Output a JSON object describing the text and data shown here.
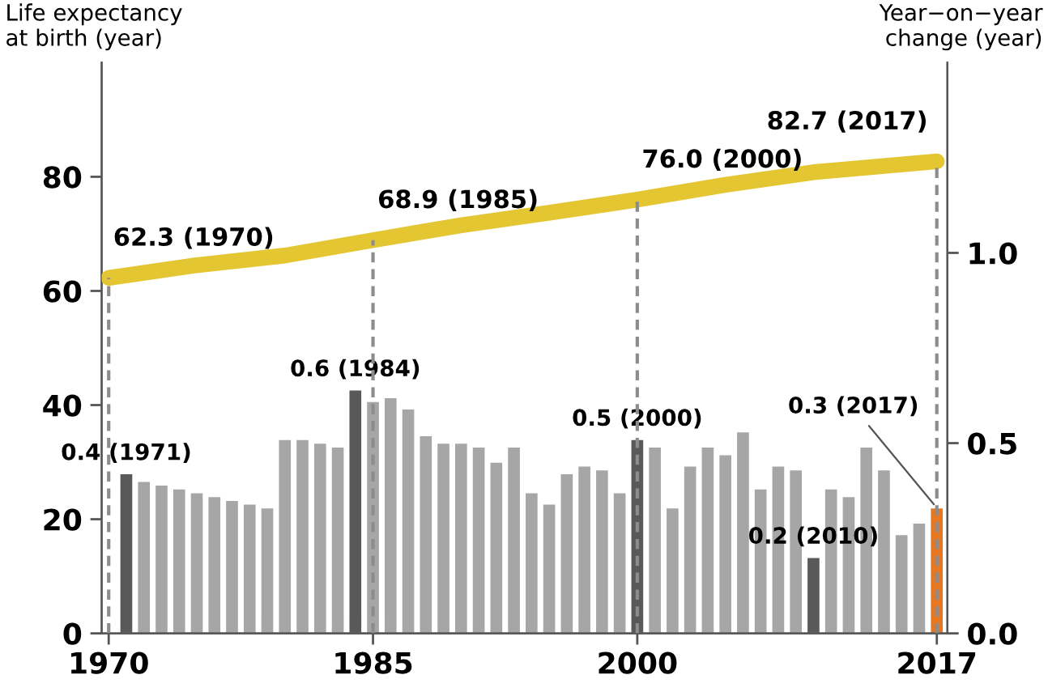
{
  "chart_data": {
    "type": "bar",
    "ylabel": "Life expectancy\nat birth (year)",
    "y2label": "Year−on−year\nchange (year)",
    "x": [
      1971,
      1972,
      1973,
      1974,
      1975,
      1976,
      1977,
      1978,
      1979,
      1980,
      1981,
      1982,
      1983,
      1984,
      1985,
      1986,
      1987,
      1988,
      1989,
      1990,
      1991,
      1992,
      1993,
      1994,
      1995,
      1996,
      1997,
      1998,
      1999,
      2000,
      2001,
      2002,
      2003,
      2004,
      2005,
      2006,
      2007,
      2008,
      2009,
      2010,
      2011,
      2012,
      2013,
      2014,
      2015,
      2016,
      2017
    ],
    "series": [
      {
        "type": "line",
        "color": "#e3c631",
        "axis": "y",
        "x": [
          1970,
          1975,
          1980,
          1985,
          1990,
          1995,
          2000,
          2005,
          2010,
          2017
        ],
        "values": [
          62.3,
          64.5,
          66.2,
          68.9,
          71.5,
          73.7,
          76.0,
          78.6,
          80.8,
          82.7
        ],
        "value_labels": [
          "62.3 (1970)",
          null,
          null,
          "68.9 (1985)",
          null,
          null,
          "76.0 (2000)",
          null,
          null,
          "82.7 (2017)"
        ]
      },
      {
        "type": "bar",
        "axis": "y2",
        "colors": [
          "#595959",
          "#a6a6a6",
          "#a6a6a6",
          "#a6a6a6",
          "#a6a6a6",
          "#a6a6a6",
          "#a6a6a6",
          "#a6a6a6",
          "#a6a6a6",
          "#a6a6a6",
          "#a6a6a6",
          "#a6a6a6",
          "#a6a6a6",
          "#595959",
          "#a6a6a6",
          "#a6a6a6",
          "#a6a6a6",
          "#a6a6a6",
          "#a6a6a6",
          "#a6a6a6",
          "#a6a6a6",
          "#a6a6a6",
          "#a6a6a6",
          "#a6a6a6",
          "#a6a6a6",
          "#a6a6a6",
          "#a6a6a6",
          "#a6a6a6",
          "#a6a6a6",
          "#595959",
          "#a6a6a6",
          "#a6a6a6",
          "#a6a6a6",
          "#a6a6a6",
          "#a6a6a6",
          "#a6a6a6",
          "#a6a6a6",
          "#a6a6a6",
          "#a6a6a6",
          "#595959",
          "#a6a6a6",
          "#a6a6a6",
          "#a6a6a6",
          "#a6a6a6",
          "#a6a6a6",
          "#a6a6a6",
          "#e87722"
        ],
        "values": [
          0.42,
          0.4,
          0.39,
          0.38,
          0.37,
          0.36,
          0.35,
          0.34,
          0.33,
          0.51,
          0.51,
          0.5,
          0.49,
          0.64,
          0.61,
          0.62,
          0.59,
          0.52,
          0.5,
          0.5,
          0.49,
          0.45,
          0.49,
          0.37,
          0.34,
          0.42,
          0.44,
          0.43,
          0.37,
          0.51,
          0.49,
          0.33,
          0.44,
          0.49,
          0.47,
          0.53,
          0.38,
          0.44,
          0.43,
          0.2,
          0.38,
          0.36,
          0.49,
          0.43,
          0.26,
          0.29,
          0.33
        ],
        "value_labels": [
          "0.4 (1971)",
          null,
          null,
          null,
          null,
          null,
          null,
          null,
          null,
          null,
          null,
          null,
          null,
          "0.6 (1984)",
          null,
          null,
          null,
          null,
          null,
          null,
          null,
          null,
          null,
          null,
          null,
          null,
          null,
          null,
          null,
          "0.5 (2000)",
          null,
          null,
          null,
          null,
          null,
          null,
          null,
          null,
          null,
          "0.2 (2010)",
          null,
          null,
          null,
          null,
          null,
          null,
          "0.3 (2017)"
        ]
      }
    ],
    "ref_lines": [
      {
        "axis": "x",
        "value": 1970,
        "line_style": "dashed",
        "color": "#8c8c8c"
      },
      {
        "axis": "x",
        "value": 1985,
        "line_style": "dashed",
        "color": "#8c8c8c"
      },
      {
        "axis": "x",
        "value": 2000,
        "line_style": "dashed",
        "color": "#8c8c8c"
      },
      {
        "axis": "x",
        "value": 2017,
        "line_style": "dashed",
        "color": "#8c8c8c"
      }
    ],
    "xlim": [
      1969.6,
      2017.6
    ],
    "xticks": [
      1970,
      1985,
      2000,
      2017
    ],
    "ylim": [
      0,
      100
    ],
    "yticks": [
      0,
      20,
      40,
      60,
      80
    ],
    "y2lim": [
      0,
      1.5
    ],
    "y2ticks": [
      {
        "value": 0,
        "label": "0.0"
      },
      {
        "value": 0.5,
        "label": "0.5"
      },
      {
        "value": 1,
        "label": "1.0"
      }
    ],
    "grid": false,
    "legend": false
  }
}
